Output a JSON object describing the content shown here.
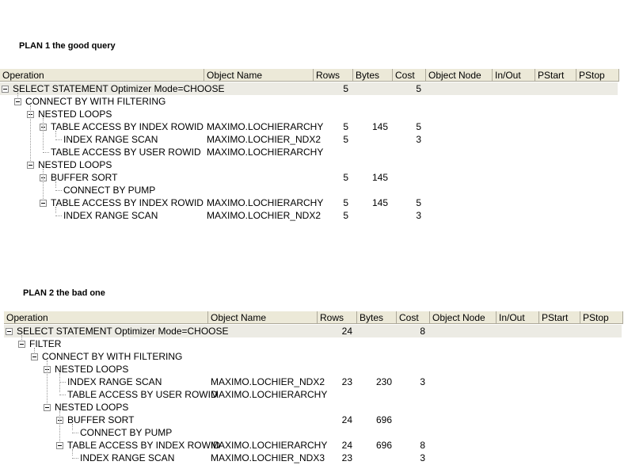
{
  "plans": [
    {
      "title": "PLAN 1 the good query",
      "columns": [
        "Operation",
        "Object Name",
        "Rows",
        "Bytes",
        "Cost",
        "Object Node",
        "In/Out",
        "PStart",
        "PStop"
      ],
      "tree": {
        "operation": "SELECT STATEMENT Optimizer Mode=CHOOSE",
        "rows": 5,
        "cost": 5,
        "children": [
          {
            "operation": "CONNECT BY WITH FILTERING",
            "children": [
              {
                "operation": "NESTED LOOPS",
                "children": [
                  {
                    "operation": "TABLE ACCESS BY INDEX ROWID",
                    "object": "MAXIMO.LOCHIERARCHY",
                    "rows": 5,
                    "bytes": 145,
                    "cost": 5,
                    "children": [
                      {
                        "operation": "INDEX RANGE SCAN",
                        "object": "MAXIMO.LOCHIER_NDX2",
                        "rows": 5,
                        "cost": 3
                      }
                    ]
                  },
                  {
                    "operation": "TABLE ACCESS BY USER ROWID",
                    "object": "MAXIMO.LOCHIERARCHY"
                  }
                ]
              },
              {
                "operation": "NESTED LOOPS",
                "children": [
                  {
                    "operation": "BUFFER SORT",
                    "rows": 5,
                    "bytes": 145,
                    "children": [
                      {
                        "operation": "CONNECT BY PUMP"
                      }
                    ]
                  },
                  {
                    "operation": "TABLE ACCESS BY INDEX ROWID",
                    "object": "MAXIMO.LOCHIERARCHY",
                    "rows": 5,
                    "bytes": 145,
                    "cost": 5,
                    "children": [
                      {
                        "operation": "INDEX RANGE SCAN",
                        "object": "MAXIMO.LOCHIER_NDX2",
                        "rows": 5,
                        "cost": 3
                      }
                    ]
                  }
                ]
              }
            ]
          }
        ]
      }
    },
    {
      "title": "PLAN 2 the bad one",
      "columns": [
        "Operation",
        "Object Name",
        "Rows",
        "Bytes",
        "Cost",
        "Object Node",
        "In/Out",
        "PStart",
        "PStop"
      ],
      "tree": {
        "operation": "SELECT STATEMENT Optimizer Mode=CHOOSE",
        "rows": 24,
        "cost": 8,
        "children": [
          {
            "operation": "FILTER",
            "children": [
              {
                "operation": "CONNECT BY WITH FILTERING",
                "children": [
                  {
                    "operation": "NESTED LOOPS",
                    "children": [
                      {
                        "operation": "INDEX RANGE SCAN",
                        "object": "MAXIMO.LOCHIER_NDX2",
                        "rows": 23,
                        "bytes": 230,
                        "cost": 3
                      },
                      {
                        "operation": "TABLE ACCESS BY USER ROWID",
                        "object": "MAXIMO.LOCHIERARCHY"
                      }
                    ]
                  },
                  {
                    "operation": "NESTED LOOPS",
                    "children": [
                      {
                        "operation": "BUFFER SORT",
                        "rows": 24,
                        "bytes": 696,
                        "children": [
                          {
                            "operation": "CONNECT BY PUMP"
                          }
                        ]
                      },
                      {
                        "operation": "TABLE ACCESS BY INDEX ROWID",
                        "object": "MAXIMO.LOCHIERARCHY",
                        "rows": 24,
                        "bytes": 696,
                        "cost": 8,
                        "children": [
                          {
                            "operation": "INDEX RANGE SCAN",
                            "object": "MAXIMO.LOCHIER_NDX3",
                            "rows": 23,
                            "cost": 3
                          }
                        ]
                      }
                    ]
                  }
                ]
              }
            ]
          }
        ]
      }
    }
  ]
}
